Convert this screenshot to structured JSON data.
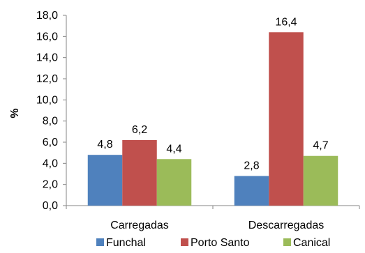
{
  "chart_data": {
    "type": "bar",
    "categories": [
      "Carregadas",
      "Descarregadas"
    ],
    "series": [
      {
        "name": "Funchal",
        "values": [
          4.8,
          2.8
        ],
        "labels": [
          "4,8",
          "2,8"
        ],
        "color": "#4F81BD"
      },
      {
        "name": "Porto Santo",
        "values": [
          6.2,
          16.4
        ],
        "labels": [
          "6,2",
          "16,4"
        ],
        "color": "#C0504D"
      },
      {
        "name": "Canical",
        "values": [
          4.4,
          4.7
        ],
        "labels": [
          "4,4",
          "4,7"
        ],
        "color": "#9BBB59"
      }
    ],
    "title": "",
    "xlabel": "",
    "ylabel": "%",
    "ylim": [
      0,
      18
    ],
    "yticks": [
      0,
      2,
      4,
      6,
      8,
      10,
      12,
      14,
      16,
      18
    ],
    "ytick_labels": [
      "0,0",
      "2,0",
      "4,0",
      "6,0",
      "8,0",
      "10,0",
      "12,0",
      "14,0",
      "16,0",
      "18,0"
    ],
    "grid": false,
    "legend_position": "bottom"
  }
}
